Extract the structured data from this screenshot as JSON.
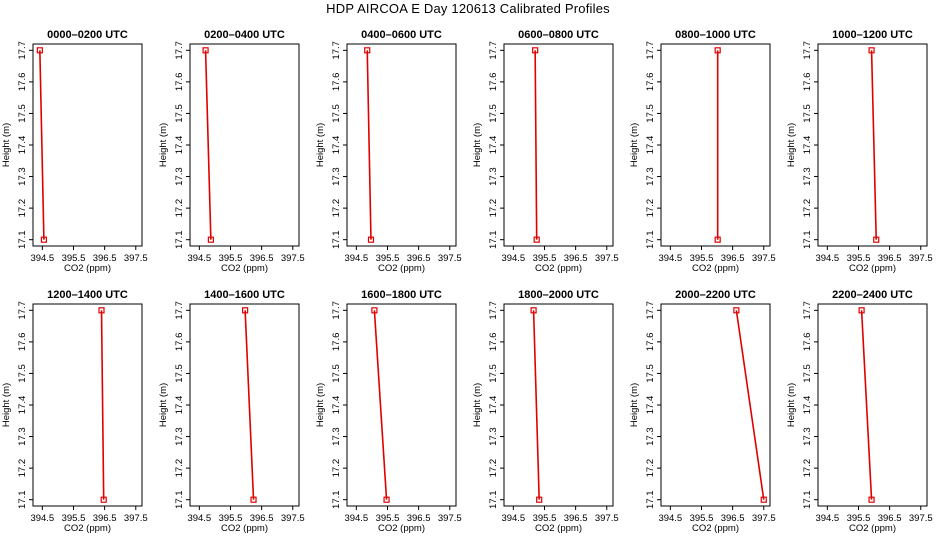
{
  "title": "HDP AIRCOA E  Day 120613  Calibrated Profiles",
  "xlabel": "CO2 (ppm)",
  "ylabel": "Height (m)",
  "x_ticks": [
    "394.5",
    "395.5",
    "396.5",
    "397.5"
  ],
  "y_ticks": [
    "17.1",
    "17.2",
    "17.3",
    "17.4",
    "17.5",
    "17.6",
    "17.7"
  ],
  "colors": {
    "series": "#e00000",
    "axes": "#000000",
    "background": "#ffffff"
  },
  "chart_data": [
    {
      "type": "line",
      "title": "0000–0200 UTC",
      "xlabel": "CO2 (ppm)",
      "ylabel": "Height (m)",
      "xlim": [
        394.2,
        397.7
      ],
      "ylim": [
        17.08,
        17.72
      ],
      "points": [
        {
          "x": 394.42,
          "y": 17.7
        },
        {
          "x": 394.55,
          "y": 17.1
        }
      ]
    },
    {
      "type": "line",
      "title": "0200–0400 UTC",
      "xlabel": "CO2 (ppm)",
      "ylabel": "Height (m)",
      "xlim": [
        394.2,
        397.7
      ],
      "ylim": [
        17.08,
        17.72
      ],
      "points": [
        {
          "x": 394.7,
          "y": 17.7
        },
        {
          "x": 394.87,
          "y": 17.1
        }
      ]
    },
    {
      "type": "line",
      "title": "0400–0600 UTC",
      "xlabel": "CO2 (ppm)",
      "ylabel": "Height (m)",
      "xlim": [
        394.2,
        397.7
      ],
      "ylim": [
        17.08,
        17.72
      ],
      "points": [
        {
          "x": 394.85,
          "y": 17.7
        },
        {
          "x": 394.97,
          "y": 17.1
        }
      ]
    },
    {
      "type": "line",
      "title": "0600–0800 UTC",
      "xlabel": "CO2 (ppm)",
      "ylabel": "Height (m)",
      "xlim": [
        394.2,
        397.7
      ],
      "ylim": [
        17.08,
        17.72
      ],
      "points": [
        {
          "x": 395.2,
          "y": 17.7
        },
        {
          "x": 395.25,
          "y": 17.1
        }
      ]
    },
    {
      "type": "line",
      "title": "0800–1000 UTC",
      "xlabel": "CO2 (ppm)",
      "ylabel": "Height (m)",
      "xlim": [
        394.2,
        397.7
      ],
      "ylim": [
        17.08,
        17.72
      ],
      "points": [
        {
          "x": 396.02,
          "y": 17.7
        },
        {
          "x": 396.02,
          "y": 17.1
        }
      ]
    },
    {
      "type": "line",
      "title": "1000–1200 UTC",
      "xlabel": "CO2 (ppm)",
      "ylabel": "Height (m)",
      "xlim": [
        394.2,
        397.7
      ],
      "ylim": [
        17.08,
        17.72
      ],
      "points": [
        {
          "x": 395.92,
          "y": 17.7
        },
        {
          "x": 396.07,
          "y": 17.1
        }
      ]
    },
    {
      "type": "line",
      "title": "1200–1400 UTC",
      "xlabel": "CO2 (ppm)",
      "ylabel": "Height (m)",
      "xlim": [
        394.2,
        397.7
      ],
      "ylim": [
        17.08,
        17.72
      ],
      "points": [
        {
          "x": 396.4,
          "y": 17.7
        },
        {
          "x": 396.47,
          "y": 17.1
        }
      ]
    },
    {
      "type": "line",
      "title": "1400–1600 UTC",
      "xlabel": "CO2 (ppm)",
      "ylabel": "Height (m)",
      "xlim": [
        394.2,
        397.7
      ],
      "ylim": [
        17.08,
        17.72
      ],
      "points": [
        {
          "x": 395.97,
          "y": 17.7
        },
        {
          "x": 396.24,
          "y": 17.1
        }
      ]
    },
    {
      "type": "line",
      "title": "1600–1800 UTC",
      "xlabel": "CO2 (ppm)",
      "ylabel": "Height (m)",
      "xlim": [
        394.2,
        397.7
      ],
      "ylim": [
        17.08,
        17.72
      ],
      "points": [
        {
          "x": 395.08,
          "y": 17.7
        },
        {
          "x": 395.47,
          "y": 17.1
        }
      ]
    },
    {
      "type": "line",
      "title": "1800–2000 UTC",
      "xlabel": "CO2 (ppm)",
      "ylabel": "Height (m)",
      "xlim": [
        394.2,
        397.7
      ],
      "ylim": [
        17.08,
        17.72
      ],
      "points": [
        {
          "x": 395.15,
          "y": 17.7
        },
        {
          "x": 395.33,
          "y": 17.1
        }
      ]
    },
    {
      "type": "line",
      "title": "2000–2200 UTC",
      "xlabel": "CO2 (ppm)",
      "ylabel": "Height (m)",
      "xlim": [
        394.2,
        397.7
      ],
      "ylim": [
        17.08,
        17.72
      ],
      "points": [
        {
          "x": 396.62,
          "y": 17.7
        },
        {
          "x": 397.5,
          "y": 17.1
        }
      ]
    },
    {
      "type": "line",
      "title": "2200–2400 UTC",
      "xlabel": "CO2 (ppm)",
      "ylabel": "Height (m)",
      "xlim": [
        394.2,
        397.7
      ],
      "ylim": [
        17.08,
        17.72
      ],
      "points": [
        {
          "x": 395.6,
          "y": 17.7
        },
        {
          "x": 395.92,
          "y": 17.1
        }
      ]
    }
  ]
}
